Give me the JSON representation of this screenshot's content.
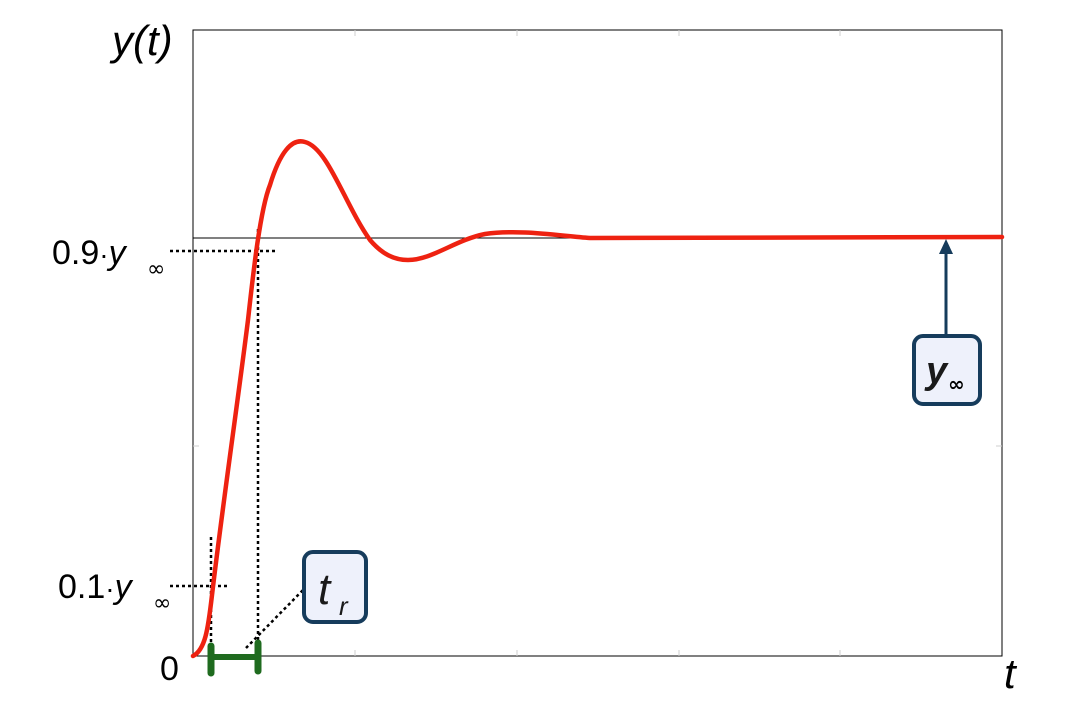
{
  "diagram": {
    "y_axis_title": "y(t)",
    "x_axis_title": "t",
    "origin_label": "0",
    "levels": {
      "upper": {
        "prefix": "0.9",
        "dot": "·",
        "symbol": "y",
        "subscript": "∞"
      },
      "lower": {
        "prefix": "0.1",
        "dot": "·",
        "symbol": "y",
        "subscript": "∞"
      }
    },
    "callouts": {
      "rise_time": {
        "symbol": "t",
        "subscript": "r"
      },
      "steady_state": {
        "symbol": "y",
        "subscript": "∞"
      }
    },
    "colors": {
      "response": "#ee2211",
      "rise_bar": "#1f6b1f",
      "callout_border": "#163c5c",
      "callout_fill": "#eef1fb",
      "arrow": "#163c5c",
      "guides": "#000000"
    },
    "icons": [
      "arrow-up-icon"
    ]
  }
}
